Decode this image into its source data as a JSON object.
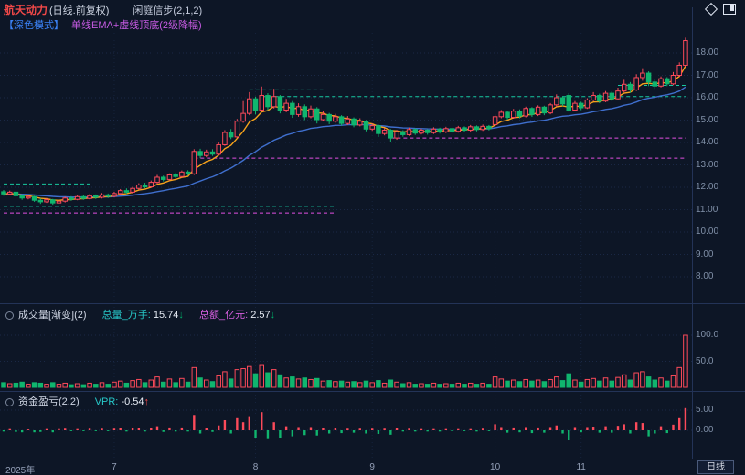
{
  "header": {
    "stock_name": "航天动力",
    "period_label": "(日线.前复权)",
    "indicator_label": "闲庭信步(2,1,2)",
    "mode_label": "【深色模式】",
    "overlay_label": "单线EMA+虚线顶底(2级降幅)",
    "icons": [
      "diamond-icon",
      "window-icon"
    ]
  },
  "volume_panel": {
    "title": "成交量[渐变](2)",
    "total_vol_label": "总量_万手:",
    "total_vol_value": "15.74",
    "total_vol_arrow": "↓",
    "total_amt_label": "总额_亿元:",
    "total_amt_value": "2.57",
    "total_amt_arrow": "↓"
  },
  "fund_panel": {
    "title": "资金盈亏(2,2)",
    "vpr_label": "VPR:",
    "vpr_value": "-0.54",
    "vpr_arrow": "↑"
  },
  "axes": {
    "price_ticks": [
      "18.00",
      "17.00",
      "16.00",
      "15.00",
      "14.00",
      "13.00",
      "12.00",
      "11.00",
      "10.00",
      "9.00",
      "8.00"
    ],
    "volume_ticks": [
      "100.0",
      "50.0"
    ],
    "fund_ticks": [
      "5.00",
      "0.00"
    ],
    "time_labels": [
      {
        "label": "2025年",
        "index": 0,
        "year": true
      },
      {
        "label": "7",
        "index": 18
      },
      {
        "label": "8",
        "index": 41
      },
      {
        "label": "9",
        "index": 60
      },
      {
        "label": "10",
        "index": 80
      },
      {
        "label": "11",
        "index": 94
      }
    ],
    "period_button": "日线"
  },
  "colors": {
    "bg": "#0d1626",
    "up": "#fc4a5a",
    "down": "#10b56e",
    "ema_fast": "#f7a21b",
    "ema_slow": "#3f6fce",
    "dash_cyan": "#17c9a0",
    "dash_magenta": "#e14fe1",
    "grid": "#1a2845",
    "vgrid": "#16233d",
    "separator": "#233357"
  },
  "chart_data": {
    "type": "candlestick",
    "title": "航天动力 日线 前复权",
    "price_range": [
      8.0,
      18.68
    ],
    "volume_range": [
      0,
      100
    ],
    "fund_range": [
      -5,
      5
    ],
    "candles_format": [
      "open",
      "close",
      "high",
      "low",
      "volume_wanshou",
      "fund"
    ],
    "candles": [
      [
        11.8,
        11.7,
        11.88,
        11.62,
        9,
        -0.3
      ],
      [
        11.7,
        11.78,
        11.85,
        11.64,
        7,
        0.3
      ],
      [
        11.78,
        11.62,
        11.82,
        11.55,
        8,
        -0.4
      ],
      [
        11.62,
        11.52,
        11.68,
        11.44,
        10,
        -0.5
      ],
      [
        11.52,
        11.58,
        11.66,
        11.46,
        6,
        0.2
      ],
      [
        11.58,
        11.42,
        11.62,
        11.35,
        9,
        -0.5
      ],
      [
        11.42,
        11.35,
        11.5,
        11.26,
        8,
        -0.4
      ],
      [
        11.35,
        11.44,
        11.52,
        11.3,
        6,
        0.3
      ],
      [
        11.44,
        11.3,
        11.48,
        11.22,
        9,
        -0.5
      ],
      [
        11.3,
        11.38,
        11.46,
        11.24,
        6,
        0.3
      ],
      [
        11.38,
        11.52,
        11.58,
        11.32,
        8,
        0.4
      ],
      [
        11.52,
        11.46,
        11.6,
        11.4,
        5,
        -0.2
      ],
      [
        11.46,
        11.58,
        11.64,
        11.42,
        7,
        0.3
      ],
      [
        11.58,
        11.5,
        11.64,
        11.44,
        5,
        -0.2
      ],
      [
        11.5,
        11.62,
        11.7,
        11.46,
        8,
        0.4
      ],
      [
        11.62,
        11.55,
        11.68,
        11.48,
        6,
        -0.2
      ],
      [
        11.55,
        11.66,
        11.74,
        11.5,
        9,
        0.4
      ],
      [
        11.66,
        11.6,
        11.72,
        11.52,
        6,
        -0.2
      ],
      [
        11.6,
        11.72,
        11.8,
        11.55,
        10,
        0.4
      ],
      [
        11.72,
        11.85,
        11.92,
        11.66,
        12,
        0.5
      ],
      [
        11.85,
        11.78,
        11.95,
        11.7,
        8,
        -0.3
      ],
      [
        11.78,
        11.95,
        12.02,
        11.72,
        13,
        0.5
      ],
      [
        11.95,
        12.1,
        12.18,
        11.9,
        15,
        0.6
      ],
      [
        12.1,
        12.02,
        12.2,
        11.95,
        9,
        -0.3
      ],
      [
        12.02,
        12.22,
        12.3,
        11.98,
        14,
        0.6
      ],
      [
        12.22,
        12.45,
        12.55,
        12.16,
        20,
        1.0
      ],
      [
        12.45,
        12.35,
        12.52,
        12.26,
        10,
        -0.4
      ],
      [
        12.35,
        12.55,
        12.62,
        12.3,
        16,
        0.7
      ],
      [
        12.55,
        12.48,
        12.64,
        12.4,
        9,
        -0.3
      ],
      [
        12.48,
        12.68,
        12.75,
        12.42,
        17,
        0.7
      ],
      [
        12.68,
        12.6,
        12.76,
        12.52,
        10,
        -0.3
      ],
      [
        12.6,
        13.6,
        13.7,
        12.55,
        38,
        3.8
      ],
      [
        13.6,
        13.42,
        13.72,
        13.3,
        18,
        -0.8
      ],
      [
        13.42,
        13.58,
        13.68,
        13.34,
        14,
        0.5
      ],
      [
        13.58,
        13.48,
        13.7,
        13.4,
        11,
        -0.4
      ],
      [
        13.48,
        13.9,
        14.0,
        13.42,
        22,
        1.2
      ],
      [
        13.9,
        14.45,
        14.55,
        13.85,
        30,
        2.5
      ],
      [
        14.45,
        14.25,
        14.6,
        14.15,
        16,
        -0.8
      ],
      [
        14.25,
        14.95,
        15.05,
        14.2,
        34,
        3.0
      ],
      [
        14.95,
        15.3,
        15.85,
        14.88,
        36,
        2.0
      ],
      [
        15.3,
        15.95,
        16.25,
        15.22,
        40,
        3.5
      ],
      [
        15.95,
        15.45,
        16.05,
        15.25,
        26,
        -2.0
      ],
      [
        15.45,
        16.1,
        16.5,
        15.4,
        42,
        4.5
      ],
      [
        16.1,
        15.6,
        16.2,
        15.45,
        28,
        -2.2
      ],
      [
        15.6,
        16.05,
        16.4,
        15.52,
        34,
        2.0
      ],
      [
        16.05,
        15.45,
        16.12,
        15.3,
        24,
        -2.0
      ],
      [
        15.45,
        15.75,
        15.95,
        15.35,
        18,
        1.0
      ],
      [
        15.75,
        15.25,
        15.85,
        15.1,
        20,
        -1.5
      ],
      [
        15.25,
        15.6,
        15.75,
        15.15,
        16,
        0.8
      ],
      [
        15.6,
        15.15,
        15.7,
        15.0,
        18,
        -1.2
      ],
      [
        15.15,
        15.5,
        15.65,
        15.08,
        15,
        0.8
      ],
      [
        15.5,
        15.02,
        15.58,
        14.85,
        17,
        -1.3
      ],
      [
        15.02,
        15.25,
        15.4,
        14.95,
        12,
        0.6
      ],
      [
        15.25,
        14.95,
        15.32,
        14.82,
        13,
        -0.8
      ],
      [
        14.95,
        15.15,
        15.28,
        14.88,
        11,
        0.5
      ],
      [
        15.15,
        14.85,
        15.22,
        14.75,
        12,
        -0.7
      ],
      [
        14.85,
        15.05,
        15.18,
        14.78,
        10,
        0.4
      ],
      [
        15.05,
        14.78,
        15.12,
        14.68,
        11,
        -0.6
      ],
      [
        14.78,
        14.95,
        15.08,
        14.72,
        9,
        0.4
      ],
      [
        14.95,
        14.6,
        15.0,
        14.5,
        12,
        -0.8
      ],
      [
        14.6,
        14.75,
        14.85,
        14.52,
        9,
        0.4
      ],
      [
        14.75,
        14.4,
        14.8,
        14.25,
        13,
        -0.9
      ],
      [
        14.4,
        14.55,
        14.65,
        14.32,
        8,
        0.4
      ],
      [
        14.55,
        14.2,
        14.6,
        14.0,
        14,
        -1.1
      ],
      [
        14.2,
        14.48,
        14.56,
        14.12,
        10,
        0.5
      ],
      [
        14.48,
        14.35,
        14.55,
        14.26,
        7,
        -0.3
      ],
      [
        14.35,
        14.58,
        14.66,
        14.3,
        9,
        0.4
      ],
      [
        14.58,
        14.42,
        14.64,
        14.34,
        6,
        -0.3
      ],
      [
        14.42,
        14.55,
        14.62,
        14.36,
        7,
        0.3
      ],
      [
        14.55,
        14.44,
        14.6,
        14.35,
        6,
        -0.3
      ],
      [
        14.44,
        14.6,
        14.68,
        14.38,
        8,
        0.3
      ],
      [
        14.6,
        14.48,
        14.66,
        14.4,
        6,
        -0.3
      ],
      [
        14.48,
        14.62,
        14.7,
        14.42,
        7,
        0.3
      ],
      [
        14.62,
        14.5,
        14.68,
        14.42,
        6,
        -0.2
      ],
      [
        14.5,
        14.66,
        14.74,
        14.44,
        8,
        0.3
      ],
      [
        14.66,
        14.55,
        14.72,
        14.46,
        6,
        -0.2
      ],
      [
        14.55,
        14.7,
        14.78,
        14.48,
        8,
        0.3
      ],
      [
        14.7,
        14.58,
        14.76,
        14.5,
        6,
        -0.3
      ],
      [
        14.58,
        14.72,
        14.8,
        14.52,
        8,
        0.4
      ],
      [
        14.72,
        14.62,
        14.78,
        14.54,
        6,
        -0.2
      ],
      [
        14.8,
        15.15,
        15.25,
        14.75,
        20,
        1.5
      ],
      [
        15.15,
        15.35,
        15.45,
        15.08,
        16,
        0.8
      ],
      [
        15.35,
        15.12,
        15.42,
        15.02,
        12,
        -0.6
      ],
      [
        15.12,
        15.4,
        15.5,
        15.06,
        14,
        0.7
      ],
      [
        15.4,
        15.18,
        15.48,
        15.08,
        11,
        -0.5
      ],
      [
        15.18,
        15.52,
        15.6,
        15.12,
        15,
        0.8
      ],
      [
        15.52,
        15.25,
        15.58,
        15.14,
        12,
        -0.7
      ],
      [
        15.25,
        15.58,
        15.66,
        15.18,
        14,
        0.7
      ],
      [
        15.58,
        15.32,
        15.64,
        15.22,
        11,
        -0.6
      ],
      [
        15.32,
        15.68,
        15.76,
        15.26,
        15,
        0.8
      ],
      [
        15.68,
        16.0,
        16.15,
        15.6,
        20,
        1.2
      ],
      [
        16.0,
        15.72,
        16.08,
        15.62,
        13,
        -0.8
      ],
      [
        16.1,
        15.45,
        16.2,
        15.38,
        26,
        -2.5
      ],
      [
        15.45,
        15.75,
        15.85,
        15.4,
        14,
        0.8
      ],
      [
        15.75,
        15.55,
        15.82,
        15.45,
        10,
        -0.5
      ],
      [
        15.55,
        15.9,
        15.98,
        15.5,
        15,
        0.8
      ],
      [
        15.9,
        16.1,
        16.25,
        15.84,
        17,
        0.9
      ],
      [
        16.1,
        15.85,
        16.18,
        15.76,
        12,
        -0.6
      ],
      [
        15.85,
        16.2,
        16.3,
        15.8,
        18,
        1.0
      ],
      [
        16.2,
        15.95,
        16.28,
        15.86,
        12,
        -0.6
      ],
      [
        15.95,
        16.3,
        16.45,
        15.9,
        19,
        1.1
      ],
      [
        16.3,
        16.6,
        16.8,
        16.24,
        24,
        1.5
      ],
      [
        16.6,
        16.35,
        16.7,
        16.22,
        14,
        -0.8
      ],
      [
        16.35,
        16.9,
        17.05,
        16.3,
        28,
        2.0
      ],
      [
        16.9,
        17.1,
        17.32,
        16.76,
        30,
        1.8
      ],
      [
        17.1,
        16.7,
        17.18,
        16.52,
        20,
        -1.5
      ],
      [
        16.7,
        16.52,
        16.82,
        16.4,
        14,
        -0.8
      ],
      [
        16.52,
        16.85,
        16.95,
        16.46,
        18,
        1.0
      ],
      [
        16.85,
        16.62,
        16.92,
        16.52,
        12,
        -0.7
      ],
      [
        16.62,
        17.0,
        17.15,
        16.56,
        22,
        1.4
      ],
      [
        17.0,
        17.45,
        17.58,
        16.94,
        38,
        3.0
      ],
      [
        17.45,
        18.55,
        18.68,
        17.38,
        100,
        5.5
      ]
    ],
    "overlays": [
      {
        "name": "EMA fast",
        "color": "#f7a21b",
        "period": 6
      },
      {
        "name": "EMA slow",
        "color": "#3f6fce",
        "period": 24
      }
    ],
    "dashed_levels": [
      {
        "price": 12.15,
        "from": 0,
        "to": 14,
        "color": "cyan"
      },
      {
        "price": 11.15,
        "from": 0,
        "to": 54,
        "color": "cyan"
      },
      {
        "price": 10.85,
        "from": 0,
        "to": 54,
        "color": "magenta"
      },
      {
        "price": 13.3,
        "from": 31,
        "to": 111,
        "color": "magenta"
      },
      {
        "price": 14.2,
        "from": 63,
        "to": 111,
        "color": "magenta"
      },
      {
        "price": 16.05,
        "from": 42,
        "to": 111,
        "color": "cyan"
      },
      {
        "price": 15.9,
        "from": 80,
        "to": 111,
        "color": "cyan"
      },
      {
        "price": 16.35,
        "from": 40,
        "to": 52,
        "color": "cyan"
      },
      {
        "price": 16.55,
        "from": 100,
        "to": 111,
        "color": "cyan"
      }
    ]
  }
}
